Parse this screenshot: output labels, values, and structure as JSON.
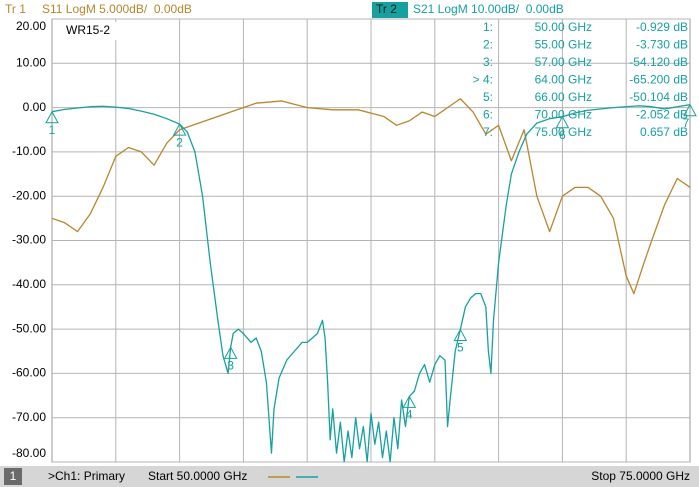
{
  "chart_data": {
    "type": "line",
    "title": "WR15-2",
    "xlim": [
      50,
      75
    ],
    "ylim": [
      -80,
      20
    ],
    "y2lim": [
      -40,
      10
    ],
    "yticks": [
      {
        "value": 20,
        "label": "20.00"
      },
      {
        "value": 10,
        "label": "10.00"
      },
      {
        "value": 0,
        "label": "0.00"
      },
      {
        "value": -10,
        "label": "-10.00"
      },
      {
        "value": -20,
        "label": "-20.00"
      },
      {
        "value": -30,
        "label": "-30.00"
      },
      {
        "value": -40,
        "label": "-40.00"
      },
      {
        "value": -50,
        "label": "-50.00"
      },
      {
        "value": -60,
        "label": "-60.00"
      },
      {
        "value": -70,
        "label": "-70.00"
      },
      {
        "value": -80,
        "label": "-80.00"
      }
    ],
    "grid": true,
    "series": [
      {
        "trace": "Tr 1",
        "name": "S11 LogM 5.000dB/  0.00dB",
        "color": "#b8862c",
        "axis": "y2",
        "x": [
          50,
          50.5,
          51,
          51.5,
          52,
          52.5,
          53,
          53.5,
          54,
          54.5,
          55,
          56,
          57,
          58,
          59,
          60,
          61,
          62,
          63,
          63.5,
          64,
          64.5,
          65,
          65.5,
          66,
          66.5,
          67,
          67.5,
          68,
          68.5,
          69,
          69.5,
          70,
          70.5,
          71,
          71.5,
          72,
          72.5,
          72.8,
          73.2,
          73.5,
          74,
          74.5,
          75
        ],
        "values": [
          -12.5,
          -13,
          -14,
          -12,
          -9,
          -5.5,
          -4.5,
          -5,
          -6.5,
          -4,
          -2.5,
          -1.5,
          -0.5,
          0.5,
          0.75,
          0,
          -0.25,
          -0.25,
          -1,
          -2,
          -1.5,
          -0.5,
          -1,
          0,
          1,
          -0.5,
          -3,
          -2,
          -6,
          -2.5,
          -10,
          -14,
          -10,
          -9,
          -9,
          -10,
          -12.5,
          -19,
          -21,
          -17.5,
          -15,
          -11,
          -8,
          -9
        ]
      },
      {
        "trace": "Tr 2",
        "name": "S21 LogM 10.00dB/  0.00dB",
        "color": "#17a0a0",
        "x": [
          50,
          50.5,
          51,
          51.5,
          52,
          52.5,
          53,
          53.5,
          54,
          54.5,
          55,
          55.3,
          55.6,
          55.9,
          56.2,
          56.5,
          56.7,
          56.9,
          57,
          57.1,
          57.3,
          57.5,
          57.8,
          58,
          58.2,
          58.4,
          58.6,
          58.7,
          58.9,
          59.2,
          59.5,
          59.8,
          60,
          60.2,
          60.4,
          60.6,
          60.7,
          60.8,
          60.9,
          61,
          61.15,
          61.3,
          61.45,
          61.6,
          61.75,
          61.9,
          62.05,
          62.2,
          62.35,
          62.5,
          62.65,
          62.8,
          62.95,
          63.1,
          63.25,
          63.4,
          63.55,
          63.7,
          63.85,
          64,
          64.2,
          64.4,
          64.6,
          64.8,
          65,
          65.2,
          65.4,
          65.5,
          65.6,
          65.8,
          66,
          66.2,
          66.4,
          66.6,
          66.8,
          67,
          67.1,
          67.2,
          67.3,
          67.5,
          67.8,
          68,
          68.3,
          68.6,
          69,
          69.5,
          70,
          70.5,
          71,
          72,
          73,
          73.5,
          74,
          74.5,
          75
        ],
        "values": [
          -0.929,
          -0.4,
          -0.1,
          0.2,
          0.3,
          0.1,
          -0.2,
          -0.8,
          -1.5,
          -2.5,
          -3.73,
          -5.5,
          -10,
          -20,
          -35,
          -48,
          -56,
          -60,
          -54.12,
          -51,
          -50,
          -51,
          -53,
          -52,
          -55,
          -62,
          -78,
          -68,
          -61,
          -57,
          -55,
          -53,
          -53,
          -52,
          -51,
          -48,
          -52,
          -62,
          -75,
          -68,
          -78,
          -71,
          -80,
          -73,
          -79,
          -70,
          -77,
          -72,
          -80,
          -69,
          -76,
          -71,
          -79,
          -73,
          -80,
          -70,
          -77,
          -66,
          -72,
          -65.2,
          -64,
          -60,
          -58,
          -62,
          -58,
          -56,
          -57,
          -72,
          -66,
          -55,
          -50.104,
          -45,
          -43,
          -42,
          -42,
          -45,
          -55,
          -60,
          -48,
          -35,
          -22,
          -15,
          -10,
          -6,
          -3.5,
          -2.5,
          -2.052,
          -1.2,
          -0.6,
          0,
          0.4,
          0.2,
          -0.3,
          0.2,
          0.657
        ]
      }
    ],
    "markers": [
      {
        "label": "1:",
        "id": "1",
        "x": 50,
        "x_label": "50.00 GHz",
        "value": -0.929,
        "value_label": "-0.929 dB"
      },
      {
        "label": "2:",
        "id": "2",
        "x": 55,
        "x_label": "55.00 GHz",
        "value": -3.73,
        "value_label": "-3.730 dB"
      },
      {
        "label": "3:",
        "id": "3",
        "x": 57,
        "x_label": "57.00 GHz",
        "value": -54.12,
        "value_label": "-54.120 dB"
      },
      {
        "label": "> 4:",
        "id": "4",
        "x": 64,
        "x_label": "64.00 GHz",
        "value": -65.2,
        "value_label": "-65.200 dB"
      },
      {
        "label": "5:",
        "id": "5",
        "x": 66,
        "x_label": "66.00 GHz",
        "value": -50.104,
        "value_label": "-50.104 dB"
      },
      {
        "label": "6:",
        "id": "6",
        "x": 70,
        "x_label": "70.00 GHz",
        "value": -2.052,
        "value_label": "-2.052 dB"
      },
      {
        "label": "7:",
        "id": "7",
        "x": 75,
        "x_label": "75.00 GHz",
        "value": 0.657,
        "value_label": "0.657 dB"
      }
    ],
    "channel_number": "1",
    "channel": ">Ch1: Primary",
    "start_label": "Start 50.0000 GHz",
    "stop_label": "Stop 75.0000 GHz"
  }
}
